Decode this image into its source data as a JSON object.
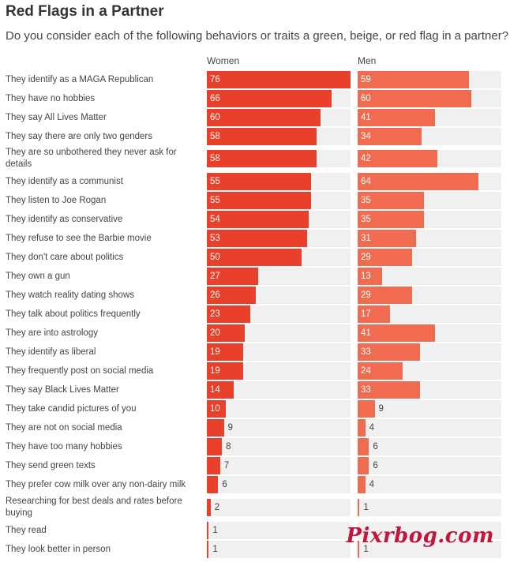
{
  "header": {
    "title": "Red Flags in a Partner",
    "subtitle": "Do you consider each of the following behaviors or traits a green, beige, or red flag in a partner?"
  },
  "colors": {
    "women_bar": "#e8402a",
    "men_bar": "#f06b50",
    "track": "#f0f0f0"
  },
  "watermark": "Pixrbog.com",
  "chart_data": {
    "type": "bar",
    "orientation": "horizontal",
    "title": "Red Flags in a Partner",
    "subtitle": "Do you consider each of the following behaviors or traits a green, beige, or red flag in a partner?",
    "xlim": [
      0,
      76
    ],
    "categories": [
      "They identify as a MAGA Republican",
      "They have no hobbies",
      "They say All Lives Matter",
      "They say there are only two genders",
      "They are so unbothered they never ask for details",
      "They identify as a communist",
      "They listen to Joe Rogan",
      "They identify as conservative",
      "They refuse to see the Barbie movie",
      "They don't care about politics",
      "They own a gun",
      "They watch reality dating shows",
      "They talk about politics frequently",
      "They are into astrology",
      "They identify as liberal",
      "They frequently post on social media",
      "They say Black Lives Matter",
      "They take candid pictures of you",
      "They are not on social media",
      "They have too many hobbies",
      "They send green texts",
      "They prefer cow milk over any non-dairy milk",
      "Researching for best deals and rates before buying",
      "They read",
      "They look better in person"
    ],
    "series": [
      {
        "name": "Women",
        "values": [
          76,
          66,
          60,
          58,
          58,
          55,
          55,
          54,
          53,
          50,
          27,
          26,
          23,
          20,
          19,
          19,
          14,
          10,
          9,
          8,
          7,
          6,
          2,
          1,
          1
        ]
      },
      {
        "name": "Men",
        "values": [
          59,
          60,
          41,
          34,
          42,
          64,
          35,
          35,
          31,
          29,
          13,
          29,
          17,
          41,
          33,
          24,
          33,
          9,
          4,
          6,
          6,
          4,
          1,
          0,
          1
        ]
      }
    ],
    "value_labels": {
      "Women": [
        "76",
        "66",
        "60",
        "58",
        "58",
        "55",
        "55",
        "54",
        "53",
        "50",
        "27",
        "26",
        "23",
        "20",
        "19",
        "19",
        "14",
        "10",
        "9",
        "8",
        "7",
        "6",
        "2",
        "1",
        "1"
      ],
      "Men": [
        "59",
        "60",
        "41",
        "34",
        "42",
        "64",
        "35",
        "35",
        "31",
        "29",
        "13",
        "29",
        "17",
        "41",
        "33",
        "24",
        "33",
        "9",
        "4",
        "6",
        "6",
        "4",
        "1",
        "",
        "1"
      ]
    }
  }
}
